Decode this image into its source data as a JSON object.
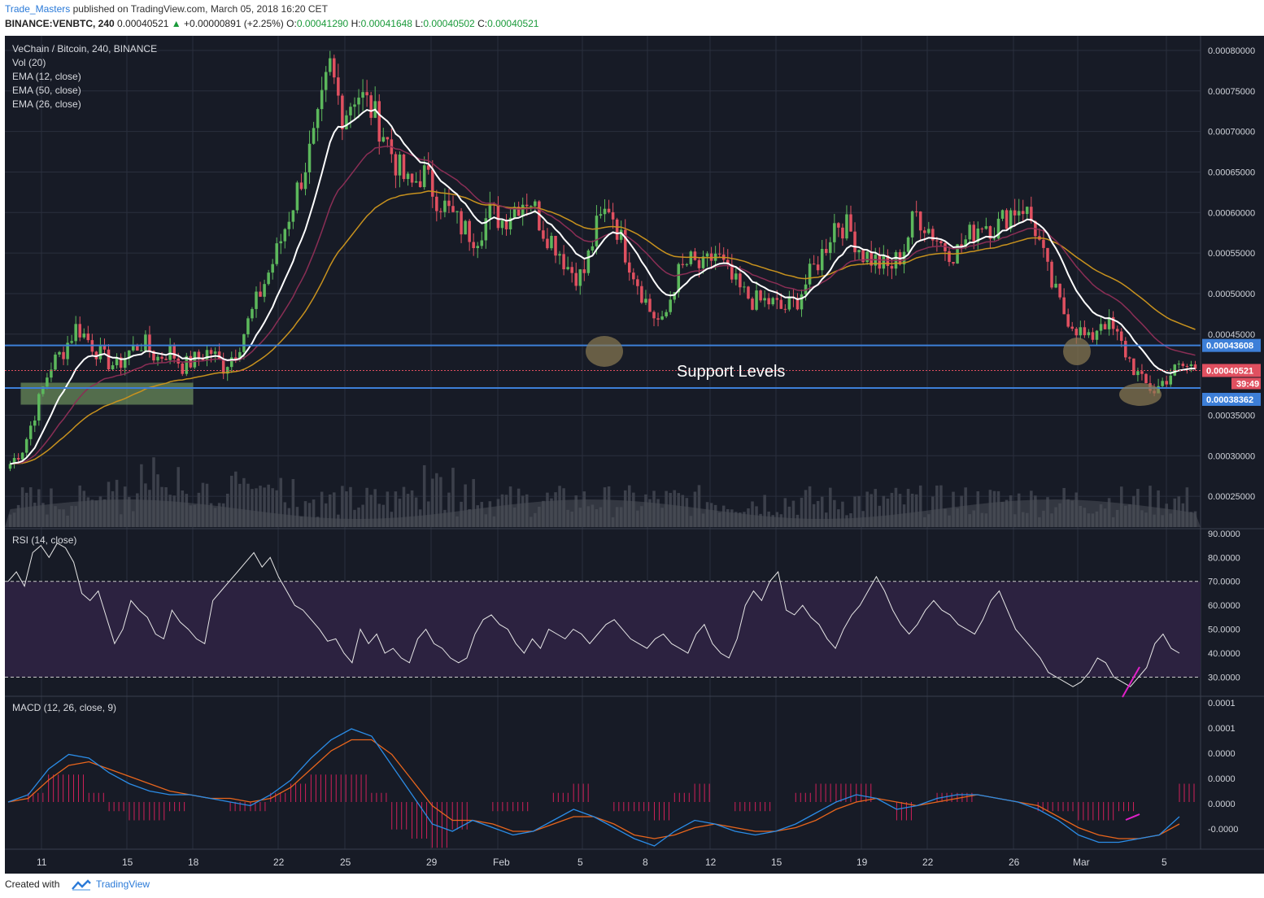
{
  "header": {
    "author": "Trade_Masters",
    "published": "published on TradingView.com, March 05, 2018 16:20 CET",
    "symbol": "BINANCE:VENBTC, 240",
    "last": "0.00040521",
    "change": "+0.00000891 (+2.25%)",
    "o_label": "O:",
    "o": "0.00041290",
    "h_label": "H:",
    "h": "0.00041648",
    "l_label": "L:",
    "l": "0.00040502",
    "c_label": "C:",
    "c": "0.00040521"
  },
  "legend": {
    "title": "VeChain / Bitcoin, 240, BINANCE",
    "items": [
      "Vol (20)",
      "EMA (12, close)",
      "EMA (50, close)",
      "EMA (26, close)"
    ]
  },
  "annotation": "Support Levels",
  "footer": {
    "created": "Created with",
    "brand": "TradingView"
  },
  "colors": {
    "bg": "#171b26",
    "grid": "#2a2f3d",
    "up": "#5cb85c",
    "down": "#e05060",
    "ema12": "#ffffff",
    "ema26": "#8a2e55",
    "ema50": "#c8921e",
    "support": "#3d7fd8",
    "rsi_band": "#2c2240",
    "rsi_line": "#e6e6e6",
    "macd": "#2b8ce6",
    "signal": "#e8651c",
    "hist": "#d0205a",
    "circle": "#8c7a52"
  },
  "chart_data": [
    {
      "type": "candlestick",
      "title": "VeChain / Bitcoin, 240, BINANCE",
      "x_ticks": [
        "11",
        "15",
        "18",
        "22",
        "25",
        "29",
        "Feb",
        "5",
        "8",
        "12",
        "15",
        "19",
        "22",
        "26",
        "Mar",
        "5"
      ],
      "y_ticks": [
        "0.00080000",
        "0.00075000",
        "0.00070000",
        "0.00065000",
        "0.00060000",
        "0.00055000",
        "0.00050000",
        "0.00045000",
        "0.00035000",
        "0.00030000",
        "0.00025000"
      ],
      "ylim": [
        0.0002,
        0.00083
      ],
      "support_levels": [
        0.00043608,
        0.00038362
      ],
      "support_labels": [
        "0.00043608",
        "0.00038362"
      ],
      "last_price": 0.00040521,
      "last_price_label": "0.00040521",
      "countdown": "39:49",
      "close_path": [
        0.00029,
        0.00031,
        0.00036,
        0.00041,
        0.00043,
        0.00046,
        0.00044,
        0.00042,
        0.00041,
        0.00043,
        0.00044,
        0.00042,
        0.00043,
        0.00041,
        0.00042,
        0.00043,
        0.00041,
        0.00043,
        0.00047,
        0.00051,
        0.00055,
        0.0006,
        0.00065,
        0.0007,
        0.00078,
        0.00072,
        0.00075,
        0.00073,
        0.0007,
        0.00066,
        0.00063,
        0.00065,
        0.00062,
        0.0006,
        0.00058,
        0.00057,
        0.0006,
        0.00059,
        0.00061,
        0.00062,
        0.00058,
        0.00056,
        0.00053,
        0.00052,
        0.00058,
        0.00061,
        0.00056,
        0.00052,
        0.00048,
        0.00046,
        0.00052,
        0.00054,
        0.00053,
        0.00055,
        0.00052,
        0.0005,
        0.00049,
        0.00049,
        0.00048,
        0.00049,
        0.00052,
        0.00055,
        0.00059,
        0.00058,
        0.00055,
        0.00054,
        0.00053,
        0.00055,
        0.0006,
        0.00058,
        0.00056,
        0.00055,
        0.00057,
        0.00059,
        0.00058,
        0.0006,
        0.00061,
        0.00058,
        0.00052,
        0.00048,
        0.00046,
        0.00044,
        0.00047,
        0.00045,
        0.00042,
        0.00039,
        0.00038,
        0.0004,
        0.00041,
        0.00041
      ],
      "ema50_end": 0.000455,
      "volume_ylim": [
        0,
        1
      ]
    },
    {
      "type": "line",
      "title": "RSI (14, close)",
      "y_ticks": [
        "90.0000",
        "80.0000",
        "70.0000",
        "60.0000",
        "50.0000",
        "40.0000",
        "30.0000"
      ],
      "ylim": [
        22,
        92
      ],
      "bands": [
        30,
        70
      ],
      "series": [
        {
          "values": [
            70,
            74,
            68,
            82,
            85,
            80,
            86,
            84,
            78,
            65,
            62,
            66,
            55,
            44,
            50,
            62,
            58,
            55,
            48,
            46,
            58,
            53,
            50,
            46,
            44,
            62,
            66,
            70,
            74,
            78,
            82,
            76,
            80,
            72,
            66,
            60,
            58,
            54,
            50,
            45,
            46,
            40,
            36,
            50,
            44,
            48,
            40,
            42,
            38,
            36,
            46,
            50,
            44,
            42,
            38,
            36,
            38,
            48,
            54,
            56,
            52,
            50,
            44,
            40,
            46,
            42,
            50,
            48,
            46,
            50,
            48,
            44,
            48,
            52,
            54,
            50,
            46,
            44,
            42,
            46,
            48,
            44,
            42,
            40,
            48,
            52,
            44,
            40,
            38,
            46,
            60,
            66,
            62,
            70,
            74,
            58,
            56,
            60,
            55,
            52,
            46,
            42,
            50,
            56,
            60,
            66,
            72,
            66,
            58,
            52,
            48,
            52,
            58,
            62,
            58,
            56,
            52,
            50,
            48,
            54,
            62,
            66,
            58,
            50,
            46,
            42,
            38,
            32,
            30,
            28,
            26,
            28,
            32,
            38,
            36,
            30,
            28,
            26,
            30,
            34,
            44,
            48,
            42,
            40
          ]
        }
      ]
    },
    {
      "type": "line",
      "title": "MACD (12, 26, close, 9)",
      "y_ticks": [
        "0.0001",
        "0.0001",
        "0.0000",
        "0.0000",
        "0.0000",
        "-0.0000"
      ],
      "series": [
        {
          "name": "MACD",
          "values": [
            0.0,
            0.02,
            0.09,
            0.13,
            0.12,
            0.08,
            0.05,
            0.03,
            0.02,
            0.02,
            0.01,
            0.0,
            -0.01,
            0.02,
            0.06,
            0.12,
            0.17,
            0.2,
            0.18,
            0.1,
            0.02,
            -0.06,
            -0.08,
            -0.05,
            -0.07,
            -0.09,
            -0.08,
            -0.05,
            -0.02,
            -0.04,
            -0.07,
            -0.1,
            -0.12,
            -0.08,
            -0.05,
            -0.06,
            -0.08,
            -0.09,
            -0.08,
            -0.06,
            -0.03,
            0.0,
            0.02,
            0.01,
            -0.02,
            -0.01,
            0.01,
            0.02,
            0.02,
            0.01,
            0.0,
            -0.02,
            -0.05,
            -0.09,
            -0.11,
            -0.11,
            -0.1,
            -0.09,
            -0.04
          ]
        },
        {
          "name": "Signal",
          "values": [
            0.0,
            0.01,
            0.06,
            0.1,
            0.11,
            0.09,
            0.07,
            0.05,
            0.03,
            0.02,
            0.01,
            0.01,
            0.0,
            0.01,
            0.04,
            0.09,
            0.14,
            0.17,
            0.17,
            0.13,
            0.06,
            -0.01,
            -0.05,
            -0.05,
            -0.06,
            -0.08,
            -0.08,
            -0.06,
            -0.04,
            -0.04,
            -0.06,
            -0.09,
            -0.1,
            -0.09,
            -0.07,
            -0.06,
            -0.07,
            -0.08,
            -0.08,
            -0.07,
            -0.05,
            -0.02,
            0.0,
            0.01,
            0.0,
            -0.01,
            0.0,
            0.01,
            0.02,
            0.01,
            0.0,
            -0.01,
            -0.04,
            -0.07,
            -0.09,
            -0.1,
            -0.1,
            -0.09,
            -0.06
          ]
        }
      ]
    }
  ]
}
